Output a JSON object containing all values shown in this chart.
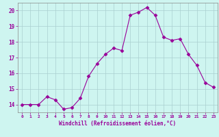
{
  "x": [
    0,
    1,
    2,
    3,
    4,
    5,
    6,
    7,
    8,
    9,
    10,
    11,
    12,
    13,
    14,
    15,
    16,
    17,
    18,
    19,
    20,
    21,
    22,
    23
  ],
  "y": [
    14.0,
    14.0,
    14.0,
    14.5,
    14.3,
    13.7,
    13.8,
    14.4,
    15.8,
    16.6,
    17.2,
    17.6,
    17.45,
    19.7,
    19.9,
    20.2,
    19.7,
    18.3,
    18.1,
    18.2,
    17.2,
    16.5,
    15.4,
    15.1
  ],
  "line_color": "#990099",
  "marker": "D",
  "marker_size": 2.5,
  "bg_color": "#cef5f0",
  "grid_color": "#aacfcf",
  "xlabel": "Windchill (Refroidissement éolien,°C)",
  "xlabel_color": "#990099",
  "tick_color": "#990099",
  "ylim": [
    13.5,
    20.5
  ],
  "xlim": [
    -0.5,
    23.5
  ],
  "yticks": [
    14,
    15,
    16,
    17,
    18,
    19,
    20
  ],
  "xticks": [
    0,
    1,
    2,
    3,
    4,
    5,
    6,
    7,
    8,
    9,
    10,
    11,
    12,
    13,
    14,
    15,
    16,
    17,
    18,
    19,
    20,
    21,
    22,
    23
  ],
  "spine_color": "#888888"
}
